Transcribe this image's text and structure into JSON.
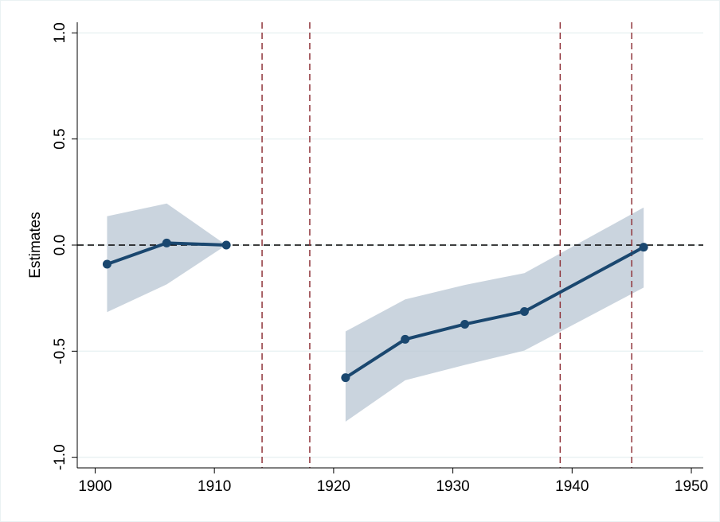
{
  "chart_data": {
    "type": "line",
    "y_label": "Estimates",
    "x": [
      1901,
      1906,
      1911,
      1916,
      1921,
      1926,
      1931,
      1936,
      1946
    ],
    "series": [
      {
        "color": "#1a476f",
        "values": [
          -0.09,
          0.01,
          0.0,
          null,
          -0.625,
          -0.444,
          -0.373,
          -0.313,
          -0.01
        ]
      }
    ],
    "band": {
      "color": "#b8c5d3",
      "upper": [
        0.136,
        0.196,
        0.0,
        null,
        -0.407,
        -0.256,
        -0.188,
        -0.132,
        0.177
      ],
      "lower": [
        -0.316,
        -0.185,
        0.0,
        null,
        -0.832,
        -0.637,
        -0.565,
        -0.497,
        -0.2
      ]
    },
    "vlines": {
      "color": "#90353b",
      "values": [
        1914,
        1918,
        1939,
        1945
      ]
    },
    "hline": 0,
    "xlim": [
      1898.5,
      1951
    ],
    "ylim": [
      -1.05,
      1.05
    ],
    "xticks": [
      1900,
      1910,
      1920,
      1930,
      1940,
      1950
    ],
    "yticks": [
      {
        "value": -1,
        "label": "-1.0"
      },
      -0.5,
      {
        "value": 0,
        "label": "0.0"
      },
      0.5,
      {
        "value": 1,
        "label": "1.0"
      }
    ],
    "grid": true
  }
}
